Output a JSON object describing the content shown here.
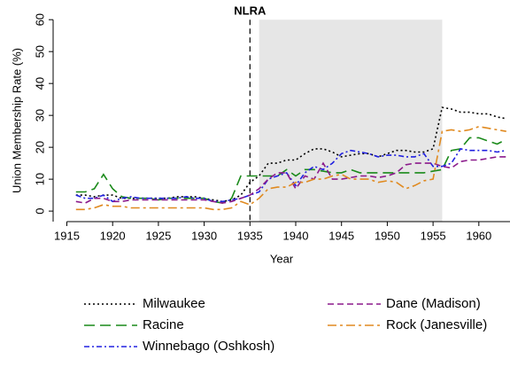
{
  "chart_data": {
    "type": "line",
    "y_label": "Union Membership Rate (%)",
    "x_label": "Year",
    "x": [
      1916,
      1917,
      1918,
      1919,
      1920,
      1921,
      1922,
      1923,
      1924,
      1925,
      1926,
      1927,
      1928,
      1929,
      1930,
      1931,
      1932,
      1933,
      1934,
      1935,
      1936,
      1937,
      1938,
      1939,
      1940,
      1941,
      1942,
      1943,
      1944,
      1945,
      1946,
      1947,
      1948,
      1949,
      1950,
      1951,
      1952,
      1953,
      1954,
      1955,
      1956,
      1957,
      1958,
      1959,
      1960,
      1961,
      1962,
      1963
    ],
    "series": [
      {
        "name": "Milwaukee",
        "color": "#000000",
        "dash": "2,3",
        "values": [
          5,
          5,
          4.5,
          5,
          5,
          4,
          4,
          4,
          4,
          4,
          4,
          4.5,
          4.5,
          4.5,
          4,
          3.5,
          3,
          3.5,
          5,
          9,
          11,
          15,
          15,
          16,
          16,
          18,
          19.5,
          19.5,
          18.5,
          17,
          17.5,
          18,
          18,
          17,
          18,
          19,
          19,
          18.5,
          18.5,
          19.5,
          32.5,
          32,
          31,
          31,
          30.5,
          30.5,
          29.5,
          29
        ]
      },
      {
        "name": "Racine",
        "color": "#1a8a1a",
        "dash": "12,6",
        "values": [
          6,
          6,
          7,
          11.5,
          7,
          4.5,
          4,
          4,
          4,
          3.5,
          4,
          4,
          4,
          4,
          4,
          3,
          2.5,
          4,
          11,
          11,
          11,
          11,
          11,
          13,
          11,
          13,
          13,
          12.5,
          12,
          12,
          13,
          12,
          12,
          12,
          12,
          12,
          12,
          12,
          12,
          12.5,
          13,
          19,
          19.5,
          23,
          23,
          22,
          21,
          22.5
        ]
      },
      {
        "name": "Winnebago (Oshkosh)",
        "color": "#2020e0",
        "dash": "6,3,2,3",
        "values": [
          5,
          4,
          4,
          5,
          3,
          4,
          4.5,
          4,
          4,
          4,
          4,
          4,
          4.5,
          4,
          4,
          3,
          3,
          3.5,
          4,
          5,
          6,
          10,
          11,
          12,
          8,
          12,
          14,
          13,
          15,
          18,
          19,
          18.5,
          18,
          17,
          17.5,
          17.5,
          17,
          17,
          18,
          14,
          14,
          15,
          19.5,
          19,
          19,
          19,
          18.5,
          19
        ]
      },
      {
        "name": "Dane (Madison)",
        "color": "#8b1a8b",
        "dash": "7,4",
        "values": [
          3,
          2.5,
          4,
          4,
          3,
          3,
          3.5,
          3.5,
          3.5,
          3.5,
          3.5,
          3.5,
          3.5,
          3.5,
          3.5,
          3,
          2.5,
          3,
          4,
          5,
          7,
          10,
          12,
          12,
          7,
          11,
          10,
          15,
          10,
          10,
          10.5,
          11,
          11,
          10.5,
          11,
          12,
          14.5,
          15,
          15,
          15,
          14,
          13.5,
          15.5,
          16,
          16,
          16.5,
          17,
          17
        ]
      },
      {
        "name": "Rock (Janesville)",
        "color": "#e08a20",
        "dash": "10,4,3,4",
        "values": [
          0.5,
          0.5,
          1,
          2,
          1.5,
          1.5,
          1,
          1,
          1,
          1,
          1,
          1,
          1,
          1,
          1,
          0.5,
          0.5,
          1,
          3,
          2,
          4,
          7,
          7.5,
          7.5,
          9,
          9,
          10,
          10,
          11,
          11.5,
          10,
          10,
          10,
          9,
          9.5,
          9,
          7,
          8,
          9.5,
          10,
          25,
          25.5,
          25,
          25.5,
          26.5,
          26,
          25.5,
          25
        ]
      }
    ],
    "xlim": [
      1913.5,
      1963.5
    ],
    "ylim": [
      -3.3,
      62
    ],
    "xticks": [
      1915,
      1920,
      1925,
      1930,
      1935,
      1940,
      1945,
      1950,
      1955,
      1960
    ],
    "yticks": [
      0,
      10,
      20,
      30,
      40,
      50,
      60
    ],
    "shaded": {
      "x": [
        1936,
        1956
      ],
      "top": 60,
      "color": "#e6e6e6"
    },
    "vline": {
      "x": 1935,
      "label": "NLRA"
    }
  }
}
